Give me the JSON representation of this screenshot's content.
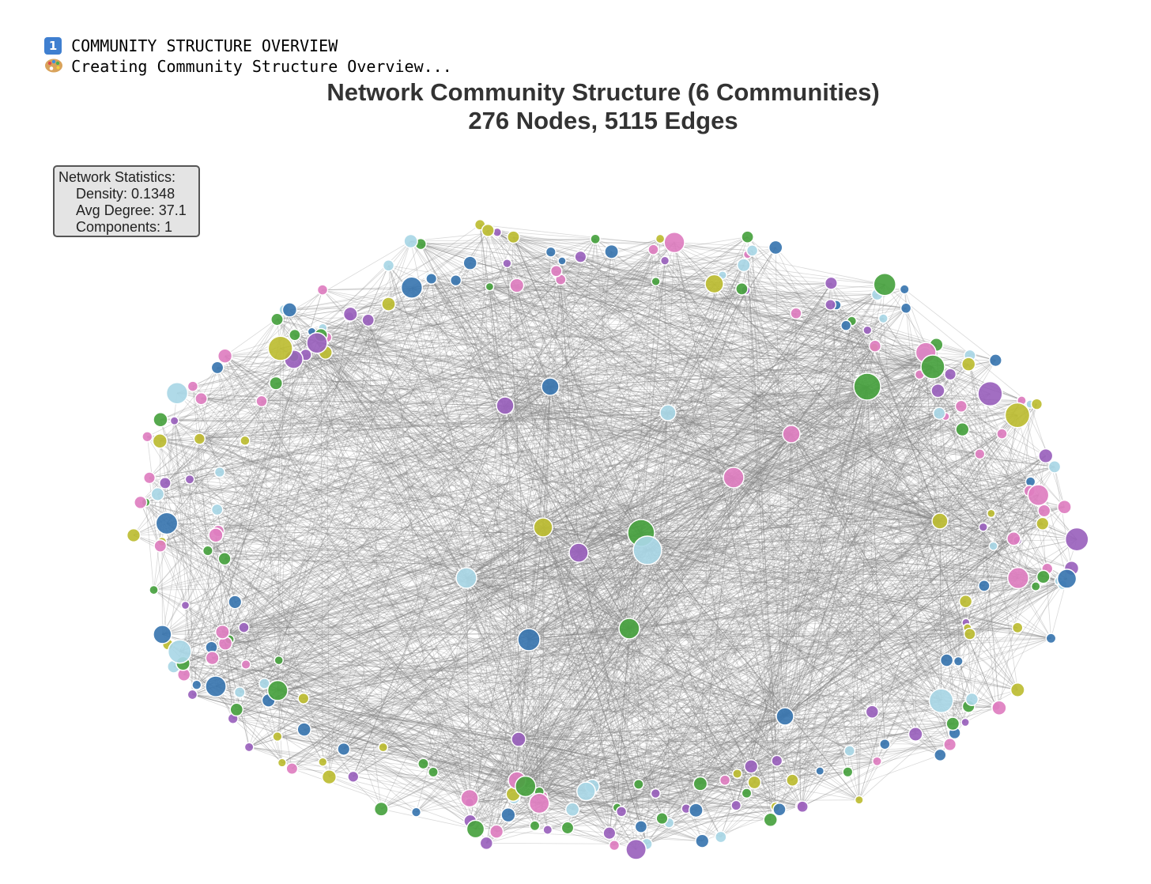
{
  "console": {
    "line1_badge": "1",
    "line1_text": "COMMUNITY STRUCTURE OVERVIEW",
    "line2_text": "Creating Community Structure Overview..."
  },
  "figure": {
    "title_line1": "Network Community Structure (6 Communities)",
    "title_line2": "276 Nodes, 5115 Edges"
  },
  "stats_box": {
    "heading": "Network Statistics:",
    "density": "Density: 0.1348",
    "avg_degree": "Avg Degree: 37.1",
    "components": "Components: 1"
  },
  "colors": {
    "community_palette": [
      "#3a76b0",
      "#48a23f",
      "#9a62bd",
      "#de7ec0",
      "#a9d7e6",
      "#bdbd32"
    ],
    "edge": "#808080",
    "node_stroke": "#ffffff"
  },
  "chart_data": {
    "type": "network",
    "nodes": 276,
    "edges": 5115,
    "communities": 6,
    "layout": "spring / elliptical ring"
  }
}
